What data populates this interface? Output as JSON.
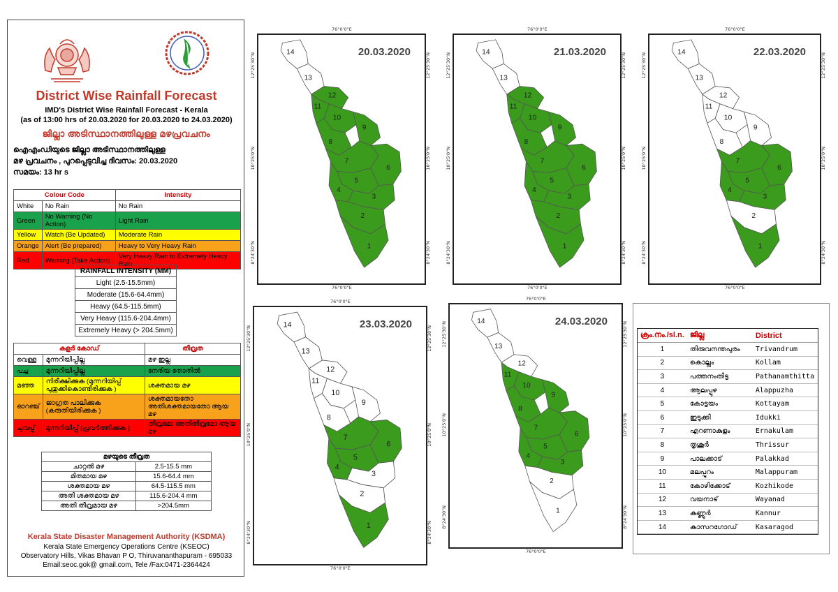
{
  "header": {
    "title": "District Wise Rainfall Forecast",
    "subtitle": "IMD's District Wise Rainfall Forecast - Kerala",
    "validity": "(as of 13:00 hrs of 20.03.2020  for 20.03.2020  to 24.03.2020)",
    "ml_title": "ജില്ലാ അടിസ്ഥാനത്തിലുള്ള മഴപ്രവചനം",
    "ml_line1": "ഐഎംഡിയുടെ ജില്ലാ    അടിസ്ഥാനത്തിലുള്ള",
    "ml_line2": "മഴ പ്രവചനം , പുറപ്പെടുവിച്ച     ദിവസം: 20.03.2020",
    "ml_line3": "സമയം:  13  hr s"
  },
  "colour_code": {
    "header_colour": "Colour Code",
    "header_intensity": "Intensity",
    "rows": [
      {
        "colour": "White",
        "code": "No Rain",
        "intensity": "No Rain",
        "bg": "white"
      },
      {
        "colour": "Green",
        "code": "No Warning (No Action)",
        "intensity": "Light Rain",
        "bg": "green"
      },
      {
        "colour": "Yellow",
        "code": "Watch (Be Updated)",
        "intensity": "Moderate Rain",
        "bg": "yellow"
      },
      {
        "colour": "Orange",
        "code": "Alert (Be prepared)",
        "intensity": "Heavy to Very Heavy Rain",
        "bg": "orange"
      },
      {
        "colour": "Red",
        "code": "Warning (Take Action)",
        "intensity": "Very Heavy Rain to Extremely Heavy Rain",
        "bg": "red"
      }
    ]
  },
  "rainfall_intensity": {
    "header": "RAINFALL INTENSITY (MM)",
    "rows": [
      "Light (2.5-15.5mm)",
      "Moderate (15.6-64.4mm)",
      "Heavy (64.5-115.5mm)",
      "Very Heavy (115.6-204.4mm)",
      "Extremely Heavy (> 204.5mm)"
    ]
  },
  "ml_colour_code": {
    "header_colour": "കളർ കോഡ്",
    "header_intensity": "തീവ്രത",
    "rows": [
      {
        "colour": "വെള്ള",
        "code": "മുന്നറിയിപ്പില്ല",
        "intensity": "മഴ ഇല്ല",
        "bg": "white"
      },
      {
        "colour": "പച്ച",
        "code": "മുന്നറിയിപ്പില്ല",
        "intensity": "നേരിയ തോതിൽ",
        "bg": "green"
      },
      {
        "colour": "മഞ്ഞ",
        "code": "നിരീക്ഷിക്കുക (മുന്നറിയിപ്പ് പുതുക്കികൊണ്ടിരിക്കുക )",
        "intensity": "ശക്തമായ മഴ",
        "bg": "yellow"
      },
      {
        "colour": "ഓറഞ്ച്",
        "code": "ജാഗ്രത പാലിക്കുക (കരുതിയിരിക്കുക )",
        "intensity": "ശക്തമായതോ അതിശക്തമായതോ ആയ മഴ",
        "bg": "orange"
      },
      {
        "colour": "ചുവപ്പ്",
        "code": "മുന്നറിയിപ്പ് (പ്രവർത്തിക്കുക )",
        "intensity": "തീവ്രമോ അതിതീവ്രമോ ആയ മഴ",
        "bg": "red"
      }
    ]
  },
  "ml_intensity": {
    "header": "മഴയുടെ തീവ്രത",
    "rows": [
      {
        "label": "ചാറ്റൽ മഴ",
        "range": "2.5-15.5 mm"
      },
      {
        "label": "മിതമായ മഴ",
        "range": "15.6-64.4 mm"
      },
      {
        "label": "ശക്തമായ മഴ",
        "range": "64.5-115.5 mm"
      },
      {
        "label": "അതി ശക്തമായ മഴ",
        "range": "115.6-204.4 mm"
      },
      {
        "label": "അതി തീവ്രമായ മഴ",
        "range": ">204.5mm"
      }
    ]
  },
  "footer": {
    "org": "Kerala State Disaster Management Authority (KSDMA)",
    "centre": "Kerala State Emergency Operations Centre (KSEOC)",
    "address": "Observatory Hills, Vikas Bhavan P O, Thiruvananthapuram - 695033",
    "contact": "Email:seoc.gok@ gmail.com, Tele /Fax:0471-2364424"
  },
  "axis_labels": {
    "lon": "76°0'0\"E",
    "lat_top": "12°25'30\"N",
    "lat_mid": "10°25'0\"N",
    "lat_bot": "8°24'30\"N"
  },
  "colors": {
    "green": "#3a9b1c",
    "white": "#ffffff",
    "border": "#555555"
  },
  "maps": [
    {
      "date": "20.03.2020",
      "green_districts": [
        1,
        2,
        3,
        4,
        5,
        6,
        7,
        8,
        9,
        10,
        11,
        12
      ]
    },
    {
      "date": "21.03.2020",
      "green_districts": [
        1,
        2,
        3,
        4,
        5,
        6,
        7,
        8,
        9,
        10,
        11,
        12
      ]
    },
    {
      "date": "22.03.2020",
      "green_districts": [
        1,
        3,
        4,
        5,
        6,
        7
      ]
    },
    {
      "date": "23.03.2020",
      "green_districts": [
        1,
        4,
        5,
        6,
        7
      ]
    },
    {
      "date": "24.03.2020",
      "green_districts": [
        3,
        4,
        5,
        6,
        7,
        8,
        9,
        10,
        11
      ]
    }
  ],
  "districts": {
    "header_num": "ക്രം.നം./sl.n.",
    "header_ml": "ജില്ല",
    "header_en": "District",
    "rows": [
      {
        "n": "1",
        "ml": "തിരുവനന്തപുരം",
        "en": "Trivandrum"
      },
      {
        "n": "2",
        "ml": "കൊല്ലം",
        "en": "Kollam"
      },
      {
        "n": "3",
        "ml": "പത്തനംതിട്ട",
        "en": "Pathanamthitta"
      },
      {
        "n": "4",
        "ml": "ആലപ്പുഴ",
        "en": "Alappuzha"
      },
      {
        "n": "5",
        "ml": "കോട്ടയം",
        "en": "Kottayam"
      },
      {
        "n": "6",
        "ml": "ഇടുക്കി",
        "en": "Idukki"
      },
      {
        "n": "7",
        "ml": "എറണാകുളം",
        "en": "Ernakulam"
      },
      {
        "n": "8",
        "ml": "തൃശൂർ",
        "en": "Thrissur"
      },
      {
        "n": "9",
        "ml": "പാലക്കാട്",
        "en": "Palakkad"
      },
      {
        "n": "10",
        "ml": "മലപ്പുറം",
        "en": "Malappuram"
      },
      {
        "n": "11",
        "ml": "കോഴിക്കോട്",
        "en": "Kozhikode"
      },
      {
        "n": "12",
        "ml": "വയനാട്",
        "en": "Wayanad"
      },
      {
        "n": "13",
        "ml": "കണ്ണൂർ",
        "en": "Kannur"
      },
      {
        "n": "14",
        "ml": "കാസറഗോഡ്",
        "en": "Kasaragod"
      }
    ]
  }
}
